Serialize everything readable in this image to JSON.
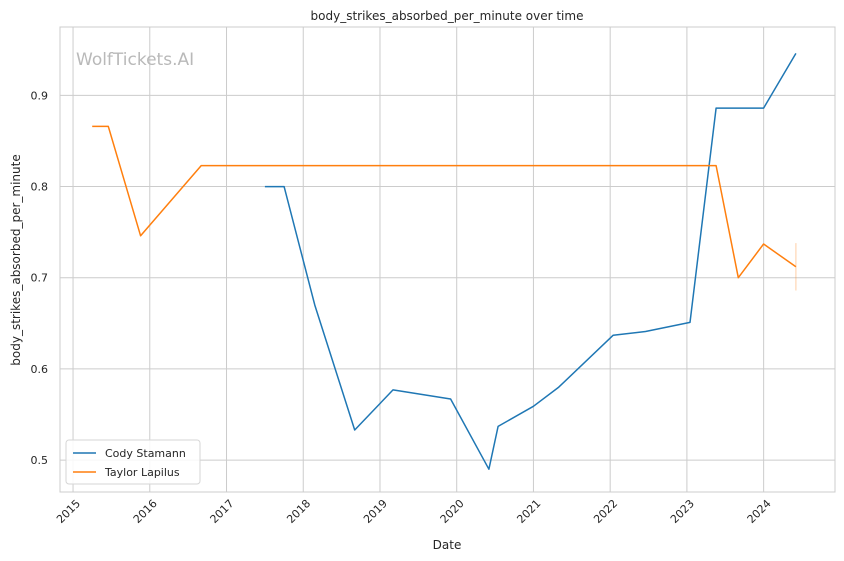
{
  "chart_data": {
    "type": "line",
    "title": "body_strikes_absorbed_per_minute over time",
    "xlabel": "Date",
    "ylabel": "body_strikes_absorbed_per_minute",
    "watermark": "WolfTickets.AI",
    "x_ticks": [
      "2015",
      "2016",
      "2017",
      "2018",
      "2019",
      "2020",
      "2021",
      "2022",
      "2023",
      "2024"
    ],
    "y_ticks": [
      "0.5",
      "0.6",
      "0.7",
      "0.8",
      "0.9"
    ],
    "xlim": [
      2014.83,
      2024.93
    ],
    "ylim": [
      0.465,
      0.975
    ],
    "grid": true,
    "legend_position": "lower-left",
    "series": [
      {
        "name": "Cody Stamann",
        "color": "#1f77b4",
        "x": [
          2017.5,
          2017.75,
          2018.15,
          2018.67,
          2019.17,
          2019.92,
          2020.42,
          2020.54,
          2021.0,
          2021.33,
          2022.04,
          2022.46,
          2023.04,
          2023.38,
          2023.62,
          2024.0,
          2024.42
        ],
        "y": [
          0.8,
          0.8,
          0.67,
          0.533,
          0.577,
          0.567,
          0.49,
          0.537,
          0.559,
          0.58,
          0.637,
          0.641,
          0.651,
          0.886,
          0.886,
          0.886,
          0.946
        ]
      },
      {
        "name": "Taylor Lapilus",
        "color": "#ff7f0e",
        "x": [
          2015.25,
          2015.46,
          2015.88,
          2016.67,
          2017.5,
          2018.5,
          2019.5,
          2020.5,
          2021.5,
          2022.5,
          2023.0,
          2023.38,
          2023.67,
          2024.0,
          2024.42
        ],
        "y": [
          0.866,
          0.866,
          0.746,
          0.823,
          0.823,
          0.823,
          0.823,
          0.823,
          0.823,
          0.823,
          0.823,
          0.823,
          0.7,
          0.737,
          0.712
        ],
        "error_band": {
          "x": 2024.42,
          "low": 0.686,
          "high": 0.738
        }
      }
    ]
  }
}
